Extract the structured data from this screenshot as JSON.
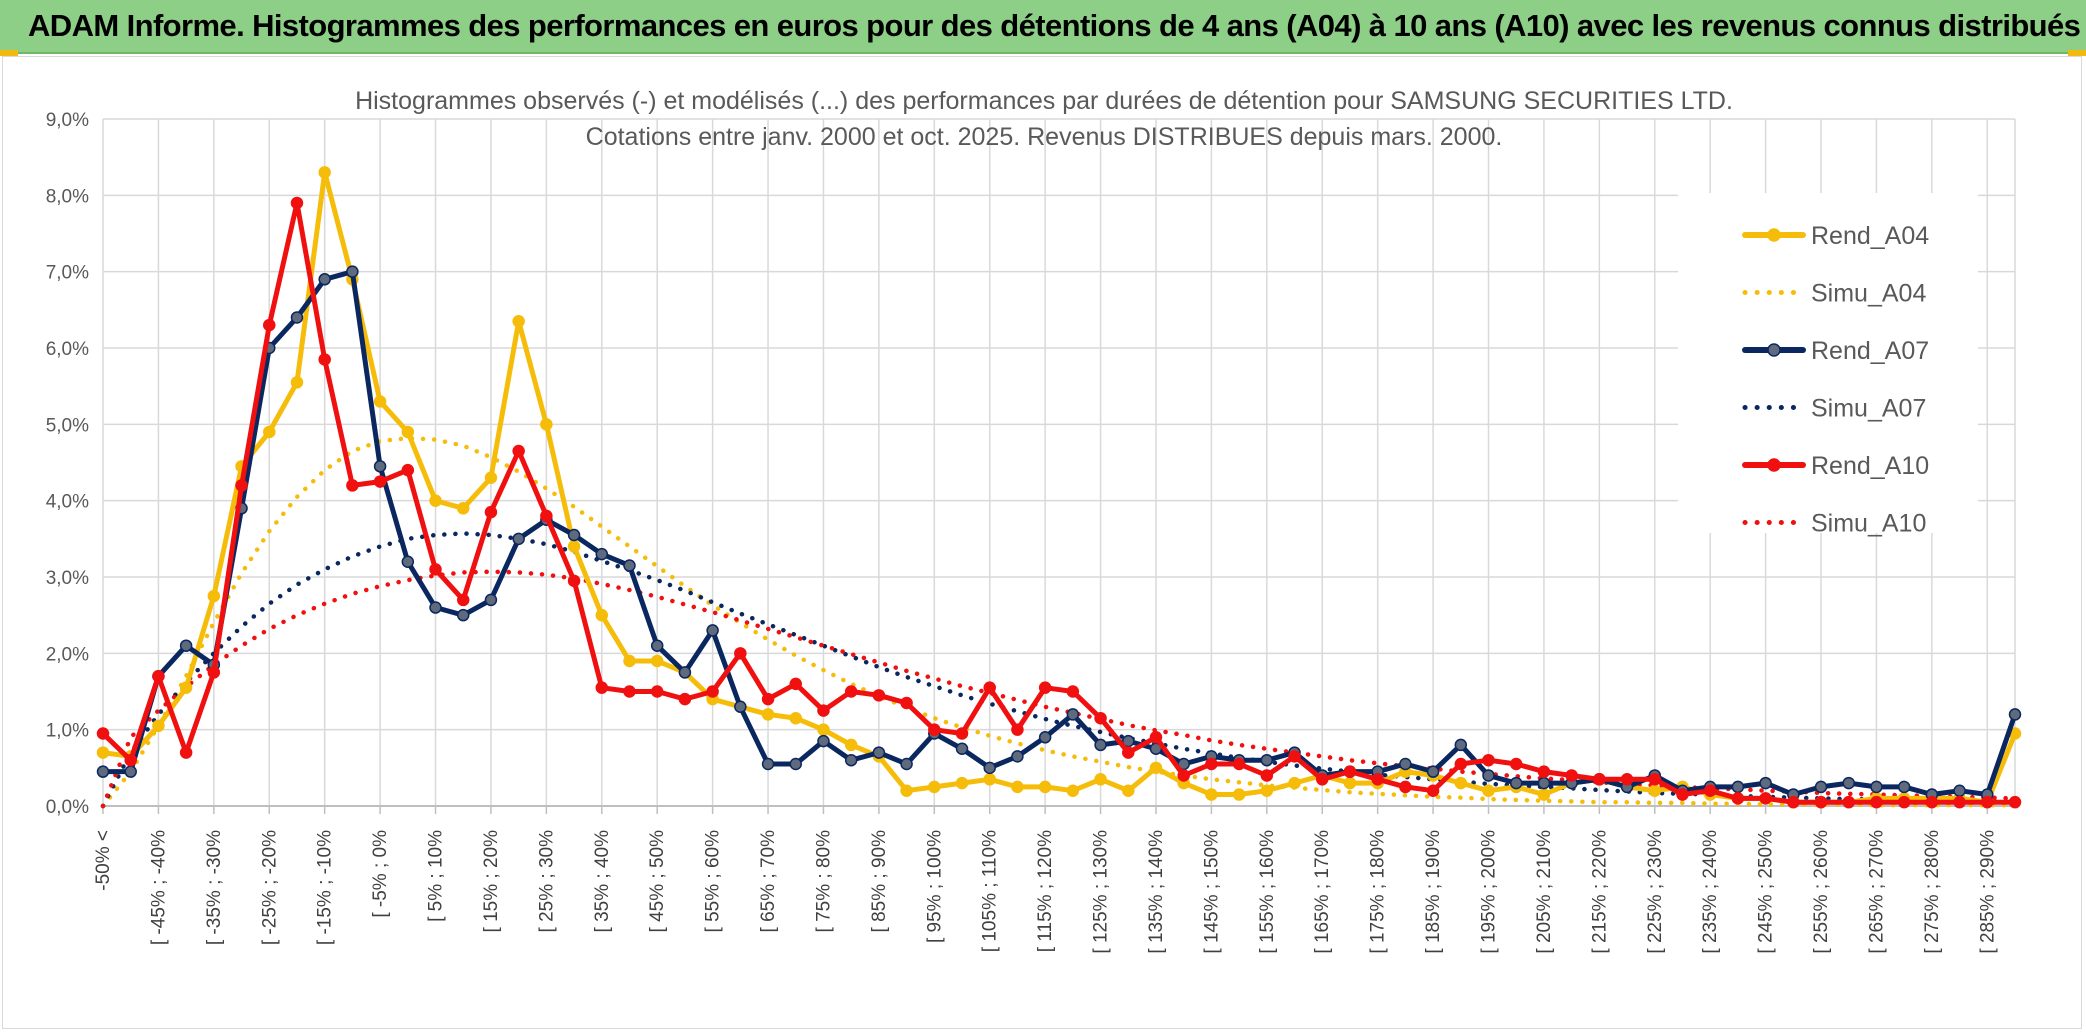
{
  "banner": {
    "title": "ADAM Informe. Histogrammes des performances en euros pour des détentions de 4 ans (A04) à 10 ans (A10) avec les revenus connus distribués"
  },
  "colors": {
    "banner": "#8dcf86",
    "a04": "#f5bd0a",
    "a07": "#0b2760",
    "a10": "#f01010",
    "a07_marker": "#5f6b7d",
    "grid": "#d9d9d9",
    "text": "#595959"
  },
  "chart_data": {
    "type": "line",
    "title": "Histogrammes observés (-) et modélisés (...) des performances par durées de détention pour SAMSUNG SECURITIES LTD.",
    "subtitle": "Cotations entre janv. 2000 et oct. 2025. Revenus DISTRIBUES depuis mars. 2000.",
    "xlabel": "",
    "ylabel": "",
    "ylim": [
      0,
      9
    ],
    "y_ticks": [
      "0,0%",
      "1,0%",
      "2,0%",
      "3,0%",
      "4,0%",
      "5,0%",
      "6,0%",
      "7,0%",
      "8,0%",
      "9,0%"
    ],
    "grid": true,
    "legend_position": "right",
    "x_tick_labels": [
      "-50% <",
      "[ -45% ; -40%",
      "[ -35% ; -30%",
      "[ -25% ; -20%",
      "[ -15% ; -10%",
      "[ -5% ; 0%",
      "[ 5% ; 10%",
      "[ 15% ; 20%",
      "[ 25% ; 30%",
      "[ 35% ; 40%",
      "[ 45% ; 50%",
      "[ 55% ; 60%",
      "[ 65% ; 70%",
      "[ 75% ; 80%",
      "[ 85% ; 90%",
      "[ 95% ; 100%",
      "[ 105% ; 110%",
      "[ 115% ; 120%",
      "[ 125% ; 130%",
      "[ 135% ; 140%",
      "[ 145% ; 150%",
      "[ 155% ; 160%",
      "[ 165% ; 170%",
      "[ 175% ; 180%",
      "[ 185% ; 190%",
      "[ 195% ; 200%",
      "[ 205% ; 210%",
      "[ 215% ; 220%",
      "[ 225% ; 230%",
      "[ 235% ; 240%",
      "[ 245% ; 250%",
      "[ 255% ; 260%",
      "[ 265% ; 270%",
      "[ 275% ; 280%",
      "[ 285% ; 290%"
    ],
    "num_bins": 70,
    "series": [
      {
        "name": "Rend_A04",
        "style": "solid",
        "color": "#f5bd0a",
        "values": [
          0.7,
          0.65,
          1.05,
          1.55,
          2.75,
          4.45,
          4.9,
          5.55,
          8.3,
          6.9,
          5.3,
          4.9,
          4.0,
          3.9,
          4.3,
          6.35,
          5.0,
          3.4,
          2.5,
          1.9,
          1.9,
          1.75,
          1.4,
          1.3,
          1.2,
          1.15,
          1.0,
          0.8,
          0.65,
          0.2,
          0.25,
          0.3,
          0.35,
          0.25,
          0.25,
          0.2,
          0.35,
          0.2,
          0.5,
          0.3,
          0.15,
          0.15,
          0.2,
          0.3,
          0.4,
          0.3,
          0.3,
          0.45,
          0.4,
          0.3,
          0.2,
          0.25,
          0.15,
          0.3,
          0.35,
          0.25,
          0.2,
          0.25,
          0.15,
          0.1,
          0.1,
          0.05,
          0.05,
          0.05,
          0.1,
          0.1,
          0.1,
          0.1,
          0.05,
          0.95
        ]
      },
      {
        "name": "Simu_A04",
        "style": "dotted",
        "color": "#f5bd0a",
        "values": [
          0.0,
          0.45,
          1.05,
          1.7,
          2.4,
          3.05,
          3.6,
          4.05,
          4.4,
          4.65,
          4.78,
          4.82,
          4.8,
          4.72,
          4.57,
          4.38,
          4.16,
          3.92,
          3.66,
          3.4,
          3.14,
          2.88,
          2.63,
          2.4,
          2.18,
          1.97,
          1.78,
          1.6,
          1.44,
          1.29,
          1.15,
          1.03,
          0.92,
          0.82,
          0.73,
          0.65,
          0.58,
          0.51,
          0.45,
          0.4,
          0.35,
          0.31,
          0.27,
          0.24,
          0.21,
          0.18,
          0.16,
          0.14,
          0.12,
          0.11,
          0.09,
          0.08,
          0.07,
          0.06,
          0.05,
          0.05,
          0.04,
          0.04,
          0.03,
          0.03,
          0.02,
          0.02,
          0.02,
          0.02,
          0.01,
          0.01,
          0.01,
          0.01,
          0.01,
          0.01
        ]
      },
      {
        "name": "Rend_A07",
        "style": "solid",
        "color": "#0b2760",
        "values": [
          0.45,
          0.45,
          1.7,
          2.1,
          1.85,
          3.9,
          6.0,
          6.4,
          6.9,
          7.0,
          4.45,
          3.2,
          2.6,
          2.5,
          2.7,
          3.5,
          3.75,
          3.55,
          3.3,
          3.15,
          2.1,
          1.75,
          2.3,
          1.3,
          0.55,
          0.55,
          0.85,
          0.6,
          0.7,
          0.55,
          0.95,
          0.75,
          0.5,
          0.65,
          0.9,
          1.2,
          0.8,
          0.85,
          0.75,
          0.55,
          0.65,
          0.6,
          0.6,
          0.7,
          0.4,
          0.45,
          0.45,
          0.55,
          0.45,
          0.8,
          0.4,
          0.3,
          0.3,
          0.3,
          0.35,
          0.25,
          0.4,
          0.2,
          0.25,
          0.25,
          0.3,
          0.15,
          0.25,
          0.3,
          0.25,
          0.25,
          0.15,
          0.2,
          0.15,
          1.2
        ]
      },
      {
        "name": "Simu_A07",
        "style": "dotted",
        "color": "#0b2760",
        "values": [
          0.0,
          0.7,
          1.2,
          1.62,
          2.0,
          2.35,
          2.65,
          2.9,
          3.1,
          3.27,
          3.4,
          3.5,
          3.55,
          3.57,
          3.55,
          3.5,
          3.43,
          3.33,
          3.21,
          3.09,
          2.96,
          2.82,
          2.67,
          2.52,
          2.38,
          2.24,
          2.1,
          1.96,
          1.82,
          1.69,
          1.57,
          1.45,
          1.34,
          1.24,
          1.14,
          1.05,
          0.97,
          0.89,
          0.82,
          0.75,
          0.69,
          0.63,
          0.58,
          0.53,
          0.49,
          0.45,
          0.41,
          0.38,
          0.35,
          0.32,
          0.29,
          0.27,
          0.25,
          0.23,
          0.21,
          0.19,
          0.17,
          0.16,
          0.15,
          0.13,
          0.12,
          0.11,
          0.1,
          0.09,
          0.09,
          0.08,
          0.07,
          0.07,
          0.06,
          0.06
        ]
      },
      {
        "name": "Rend_A10",
        "style": "solid",
        "color": "#f01010",
        "values": [
          0.95,
          0.6,
          1.7,
          0.7,
          1.75,
          4.2,
          6.3,
          7.9,
          5.85,
          4.2,
          4.25,
          4.4,
          3.1,
          2.7,
          3.85,
          4.65,
          3.8,
          2.95,
          1.55,
          1.5,
          1.5,
          1.4,
          1.5,
          2.0,
          1.4,
          1.6,
          1.25,
          1.5,
          1.45,
          1.35,
          1.0,
          0.95,
          1.55,
          1.0,
          1.55,
          1.5,
          1.15,
          0.7,
          0.9,
          0.4,
          0.55,
          0.55,
          0.4,
          0.65,
          0.35,
          0.45,
          0.35,
          0.25,
          0.2,
          0.55,
          0.6,
          0.55,
          0.45,
          0.4,
          0.35,
          0.35,
          0.35,
          0.15,
          0.2,
          0.1,
          0.1,
          0.05,
          0.05,
          0.05,
          0.05,
          0.05,
          0.05,
          0.05,
          0.05,
          0.05
        ]
      },
      {
        "name": "Simu_A10",
        "style": "dotted",
        "color": "#f01010",
        "values": [
          0.0,
          0.9,
          1.25,
          1.56,
          1.85,
          2.1,
          2.32,
          2.5,
          2.65,
          2.78,
          2.88,
          2.96,
          3.02,
          3.06,
          3.07,
          3.06,
          3.03,
          2.98,
          2.91,
          2.83,
          2.74,
          2.64,
          2.54,
          2.43,
          2.32,
          2.21,
          2.1,
          1.99,
          1.88,
          1.77,
          1.67,
          1.57,
          1.48,
          1.39,
          1.3,
          1.22,
          1.14,
          1.06,
          0.99,
          0.93,
          0.86,
          0.8,
          0.75,
          0.7,
          0.65,
          0.6,
          0.56,
          0.52,
          0.49,
          0.45,
          0.42,
          0.39,
          0.36,
          0.34,
          0.31,
          0.29,
          0.27,
          0.25,
          0.23,
          0.22,
          0.2,
          0.19,
          0.17,
          0.16,
          0.15,
          0.14,
          0.13,
          0.12,
          0.11,
          0.1
        ]
      }
    ]
  }
}
